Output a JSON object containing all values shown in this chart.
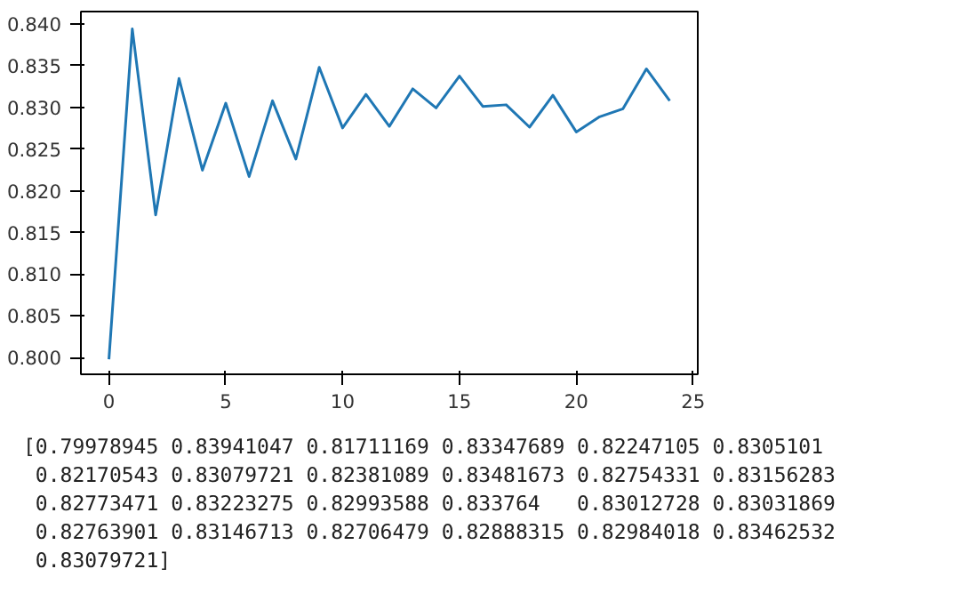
{
  "chart_data": {
    "type": "line",
    "x": [
      0,
      1,
      2,
      3,
      4,
      5,
      6,
      7,
      8,
      9,
      10,
      11,
      12,
      13,
      14,
      15,
      16,
      17,
      18,
      19,
      20,
      21,
      22,
      23,
      24
    ],
    "series": [
      {
        "color": "#1f77b4",
        "values": [
          0.79978945,
          0.83941047,
          0.81711169,
          0.83347689,
          0.82247105,
          0.8305101,
          0.82170543,
          0.83079721,
          0.82381089,
          0.83481673,
          0.82754331,
          0.83156283,
          0.82773471,
          0.83223275,
          0.82993588,
          0.833764,
          0.83012728,
          0.83031869,
          0.82763901,
          0.83146713,
          0.82706479,
          0.82888315,
          0.82984018,
          0.83462532,
          0.83079721
        ]
      }
    ],
    "xlim": [
      -1.2,
      25.2
    ],
    "xticks": [
      0,
      5,
      10,
      15,
      20,
      25
    ],
    "ylim": [
      0.798,
      0.8415
    ],
    "yticks": [
      {
        "value": 0.8,
        "label": "0.800"
      },
      {
        "value": 0.805,
        "label": "0.805"
      },
      {
        "value": 0.81,
        "label": "0.810"
      },
      {
        "value": 0.815,
        "label": "0.815"
      },
      {
        "value": 0.82,
        "label": "0.820"
      },
      {
        "value": 0.825,
        "label": "0.825"
      },
      {
        "value": 0.83,
        "label": "0.830"
      },
      {
        "value": 0.835,
        "label": "0.835"
      },
      {
        "value": 0.84,
        "label": "0.840"
      }
    ],
    "grid": false,
    "marker": "none",
    "line_style": "solid",
    "annotations": [
      "[0.79978945 0.83941047 0.81711169 0.83347689 0.82247105 0.8305101\n 0.82170543 0.83079721 0.82381089 0.83481673 0.82754331 0.83156283\n 0.82773471 0.83223275 0.82993588 0.833764   0.83012728 0.83031869\n 0.82763901 0.83146713 0.82706479 0.82888315 0.82984018 0.83462532\n 0.83079721]"
    ]
  }
}
